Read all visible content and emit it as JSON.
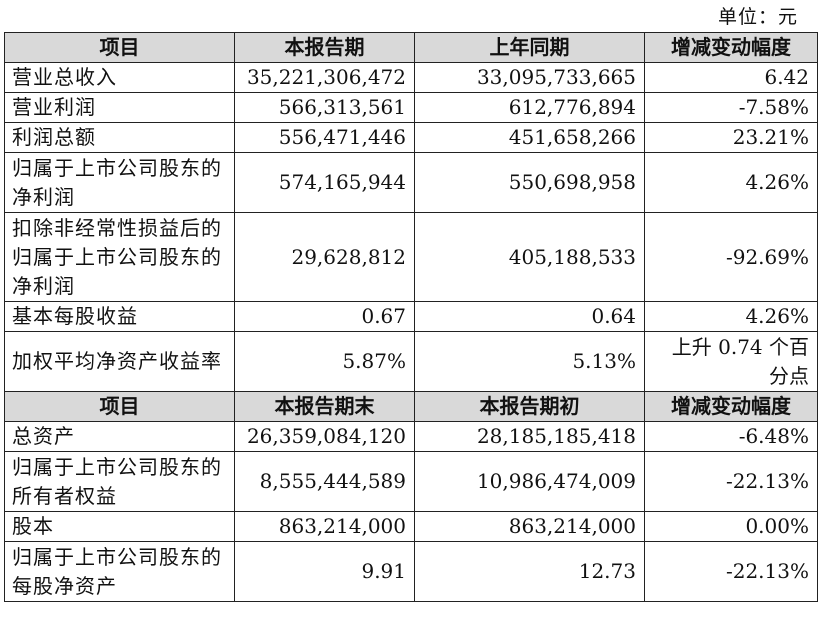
{
  "unit_label": "单位：元",
  "section1": {
    "headers": [
      "项目",
      "本报告期",
      "上年同期",
      "增减变动幅度"
    ],
    "rows": [
      {
        "label": "营业总收入",
        "current": "35,221,306,472",
        "previous": "33,095,733,665",
        "change": "6.42"
      },
      {
        "label": "营业利润",
        "current": "566,313,561",
        "previous": "612,776,894",
        "change": "-7.58%"
      },
      {
        "label": "利润总额",
        "current": "556,471,446",
        "previous": "451,658,266",
        "change": "23.21%"
      },
      {
        "label": "归属于上市公司股东的净利润",
        "current": "574,165,944",
        "previous": "550,698,958",
        "change": "4.26%"
      },
      {
        "label": "扣除非经常性损益后的归属于上市公司股东的净利润",
        "current": "29,628,812",
        "previous": "405,188,533",
        "change": "-92.69%"
      },
      {
        "label": "基本每股收益",
        "current": "0.67",
        "previous": "0.64",
        "change": "4.26%"
      },
      {
        "label": "加权平均净资产收益率",
        "current": "5.87%",
        "previous": "5.13%",
        "change": "上升 0.74 个百分点"
      }
    ]
  },
  "section2": {
    "headers": [
      "项目",
      "本报告期末",
      "本报告期初",
      "增减变动幅度"
    ],
    "rows": [
      {
        "label": "总资产",
        "current": "26,359,084,120",
        "previous": "28,185,185,418",
        "change": "-6.48%"
      },
      {
        "label": "归属于上市公司股东的所有者权益",
        "current": "8,555,444,589",
        "previous": "10,986,474,009",
        "change": "-22.13%"
      },
      {
        "label": "股本",
        "current": "863,214,000",
        "previous": "863,214,000",
        "change": "0.00%"
      },
      {
        "label": "归属于上市公司股东的每股净资产",
        "current": "9.91",
        "previous": "12.73",
        "change": "-22.13%"
      }
    ]
  }
}
